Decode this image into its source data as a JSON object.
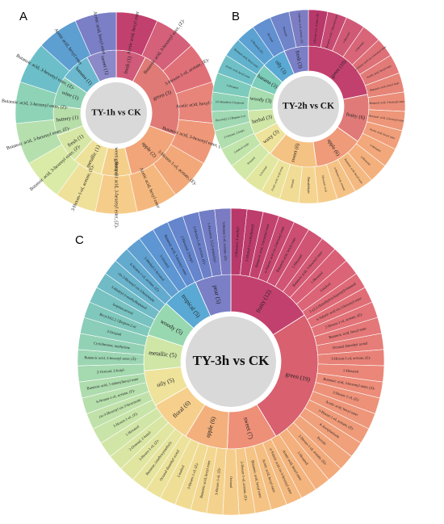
{
  "panels": [
    {
      "id": "A",
      "center_label": "TY-1h vs CK",
      "inner": [
        {
          "label": "fresh (1)",
          "color": "#cf5a7a",
          "weight": 1
        },
        {
          "label": "green (3)",
          "color": "#e07a76",
          "weight": 3
        },
        {
          "label": "apple (2)",
          "color": "#f1a579",
          "weight": 2
        },
        {
          "label": "sweet/grassy (1)",
          "color": "#f4cf8a",
          "weight": 1
        },
        {
          "label": "metallic (1)",
          "color": "#eee29b",
          "weight": 1
        },
        {
          "label": "fresh (1)",
          "color": "#d6e6a4",
          "weight": 1
        },
        {
          "label": "buttery (1)",
          "color": "#b7dea9",
          "weight": 1
        },
        {
          "label": "wine (1)",
          "color": "#8fd1b4",
          "weight": 1
        },
        {
          "label": "banana (1)",
          "color": "#6cb9cf",
          "weight": 1
        },
        {
          "label": "sweet (1)",
          "color": "#8c89c9",
          "weight": 1
        }
      ],
      "outer": [
        {
          "label": "Acetic acid, hexyl ester",
          "color": "#c2406e"
        },
        {
          "label": "Butanoic acid, 3-hexenyl ester, (Z)-",
          "color": "#d4607a"
        },
        {
          "label": "3-Hexen-1-ol, acetate, (E)-",
          "color": "#e07078"
        },
        {
          "label": "Acetic acid, hexyl ester",
          "color": "#e8857a"
        },
        {
          "label": "Butanoic acid, 3-hexenyl ester, (Z)-",
          "color": "#ee9879"
        },
        {
          "label": "3-Hexen-1-ol, acetate, (E)-",
          "color": "#f2a879"
        },
        {
          "label": "Acetic acid, hexyl ester",
          "color": "#f4b87e"
        },
        {
          "label": "Butanoic acid, 3-hexenyl ester, (Z)-",
          "color": "#f6cc8a"
        },
        {
          "label": "3-Hexen-1-ol, acetate, (E)-",
          "color": "#efe09a"
        },
        {
          "label": "Butanoic acid, 3-hexenyl ester, (Z)-",
          "color": "#d9eba6"
        },
        {
          "label": "Butanoic acid, 3-hexenyl ester, (Z)-",
          "color": "#b5e0ae"
        },
        {
          "label": "Butanoic acid, 3-hexenyl ester, (Z)-",
          "color": "#8fd3b6"
        },
        {
          "label": "Butanoic acid, 3-hexenyl ester, (Z)-",
          "color": "#6cbfc8"
        },
        {
          "label": "Acetic acid, hexyl ester",
          "color": "#5e9fd2"
        },
        {
          "label": "Acetic acid, hexyl ester",
          "color": "#7a7fc6"
        }
      ]
    },
    {
      "id": "B",
      "center_label": "TY-2h vs CK",
      "inner": [
        {
          "label": "green (10)",
          "color": "#c2406e",
          "weight": 10
        },
        {
          "label": "fruity (6)",
          "color": "#e07a78",
          "weight": 6
        },
        {
          "label": "apple (6)",
          "color": "#ef9a79",
          "weight": 6
        },
        {
          "label": "sweet (6)",
          "color": "#f4c283",
          "weight": 6
        },
        {
          "label": "waxy (3)",
          "color": "#eee39b",
          "weight": 3
        },
        {
          "label": "herbal (3)",
          "color": "#cfe6a6",
          "weight": 3
        },
        {
          "label": "woody (3)",
          "color": "#a6dcae",
          "weight": 3
        },
        {
          "label": "banana (3)",
          "color": "#7ccdb9",
          "weight": 3
        },
        {
          "label": "oily (3)",
          "color": "#5aa9d4",
          "weight": 3
        },
        {
          "label": "fresh (3)",
          "color": "#7a7fc6",
          "weight": 3
        }
      ],
      "outer": [
        {
          "label": "3-Hexen-1-ol, acetate, (E)-",
          "color": "#b8386a"
        },
        {
          "label": "Butanoic acid, 3-hexenyl ester",
          "color": "#c64a72"
        },
        {
          "label": "1-Hexanol",
          "color": "#d05a76"
        },
        {
          "label": "2-Hexenal",
          "color": "#d86678"
        },
        {
          "label": "n-Valeric acid cis-3-hexenyl ester",
          "color": "#de7078"
        },
        {
          "label": "Acetic acid, hexyl ester",
          "color": "#e27a78"
        },
        {
          "label": "Butanoic acid, hexyl ester",
          "color": "#e68478"
        },
        {
          "label": "Butanoic acid, 3-hexenyl ester",
          "color": "#ea8d79"
        },
        {
          "label": "Hexanoic acid, 3-hexenyl ester",
          "color": "#ed9679"
        },
        {
          "label": "Acetic acid, hexyl ester",
          "color": "#f09f7a"
        },
        {
          "label": "1-Hexanol",
          "color": "#f2a87b"
        },
        {
          "label": "2-Hexenal",
          "color": "#f3b07d"
        },
        {
          "label": "Butanoic acid, hexyl ester",
          "color": "#f4b980"
        },
        {
          "label": "3-Hexen-1-ol, acetate",
          "color": "#f5c285"
        },
        {
          "label": "Hexanoic acid",
          "color": "#f6cb8a"
        },
        {
          "label": "Benzaldehyde",
          "color": "#f4d48f"
        },
        {
          "label": "Octanal",
          "color": "#f0dc95"
        },
        {
          "label": "Acetic acid, octyl ester",
          "color": "#ece39b"
        },
        {
          "label": "2-Octenal",
          "color": "#e2e7a0"
        },
        {
          "label": "Nonanal",
          "color": "#d2e8a6"
        },
        {
          "label": "Linalool oxide",
          "color": "#c1e4aa"
        },
        {
          "label": "2-Octenal, 2-butyl-",
          "color": "#b0deae"
        },
        {
          "label": "Bicyclo[2.2.1]heptan-2-ol",
          "color": "#9fd8b2"
        },
        {
          "label": "2,6-Dimethyl-5-heptenal",
          "color": "#8ed2b6"
        },
        {
          "label": "1-Hexanol",
          "color": "#7dcbbc"
        },
        {
          "label": "Acetic acid, hexyl ester",
          "color": "#6ec0c6"
        },
        {
          "label": "Butanoic acid, hexyl ester",
          "color": "#62b2cd"
        },
        {
          "label": "2-Hexenal, (E)-",
          "color": "#5ba2d2"
        },
        {
          "label": "Hexanal",
          "color": "#6290d0"
        },
        {
          "label": "Nonanal",
          "color": "#6f84c9"
        },
        {
          "label": "3-Hexen-1-ol, acetate, (Z)-",
          "color": "#7c7dc3"
        }
      ]
    },
    {
      "id": "C",
      "center_label": "TY-3h vs CK",
      "inner": [
        {
          "label": "fruity (12)",
          "color": "#c2406e",
          "weight": 12
        },
        {
          "label": "green (19)",
          "color": "#d8606f",
          "weight": 19
        },
        {
          "label": "sweet (7)",
          "color": "#ee8f78",
          "weight": 7
        },
        {
          "label": "apple (6)",
          "color": "#f3b07c",
          "weight": 6
        },
        {
          "label": "floral (6)",
          "color": "#f6cf8c",
          "weight": 6
        },
        {
          "label": "oily (5)",
          "color": "#efe39b",
          "weight": 5
        },
        {
          "label": "metallic (5)",
          "color": "#cfe6a6",
          "weight": 5
        },
        {
          "label": "woody (5)",
          "color": "#98d8b0",
          "weight": 5
        },
        {
          "label": "tropical (5)",
          "color": "#5aa9d4",
          "weight": 5
        },
        {
          "label": "pear (5)",
          "color": "#7a7fc6",
          "weight": 5
        }
      ],
      "outer": [
        {
          "label": "2-Butanol, 3-methyl-",
          "color": "#b8386a"
        },
        {
          "label": "3-Methyl-1-methylpentyl",
          "color": "#bd3d6c"
        },
        {
          "label": "Butanoic acid, 3-hexenyl ester",
          "color": "#c2426e"
        },
        {
          "label": "n-Valeric acid cis-3-hexenyl ester",
          "color": "#c74870"
        },
        {
          "label": "Butanoic acid, hexyl ester",
          "color": "#cc4e72"
        },
        {
          "label": "1-Hexanol",
          "color": "#d05474"
        },
        {
          "label": "Butanoic acid, 3-hexenyl ester",
          "color": "#d45a75"
        },
        {
          "label": "1-Hexanol",
          "color": "#d85f76"
        },
        {
          "label": "Linalool",
          "color": "#db6477"
        },
        {
          "label": "2-(2,3-dimethylcyclopentyl)-butanal",
          "color": "#de6977"
        },
        {
          "label": "n-Valeric acid cis-3-hexenyl ester",
          "color": "#e06e77"
        },
        {
          "label": "2-Hexen-1-ol, acetate, (E)-",
          "color": "#e27378"
        },
        {
          "label": "Butanoic acid, hexyl ester",
          "color": "#e47878"
        },
        {
          "label": "Octanal dimethyl acetal",
          "color": "#e67d78"
        },
        {
          "label": "3-Hexen-1-ol, acetate, (E)-",
          "color": "#e88278"
        },
        {
          "label": "1-Hexanol",
          "color": "#ea8779"
        },
        {
          "label": "Butanoic acid, 3-hexenyl ester, (Z)-",
          "color": "#ec8c79"
        },
        {
          "label": "3-Hexen-1-ol, (Z)-",
          "color": "#ed9179"
        },
        {
          "label": "Acetic acid, hexyl ester",
          "color": "#ee967a"
        },
        {
          "label": "3-Hexen-1-ol, acetate, (Z)-",
          "color": "#ef9b7a"
        },
        {
          "label": "4-Acetylanisole",
          "color": "#f0a07a"
        },
        {
          "label": "Pyrrole",
          "color": "#f1a57b"
        },
        {
          "label": "2-Hexen-1-ol, acetate, (E)-",
          "color": "#f2aa7b"
        },
        {
          "label": "1-Hexanol",
          "color": "#f3af7c"
        },
        {
          "label": "Acetic acid, hexyl ester",
          "color": "#f3b47d"
        },
        {
          "label": "n-Valeric acid cis-3-hexenyl ester",
          "color": "#f4b97f"
        },
        {
          "label": "Acetic acid, hexyl ester",
          "color": "#f4be81"
        },
        {
          "label": "Butanoic acid, hexyl ester",
          "color": "#f5c384"
        },
        {
          "label": "2-Hexen-1-ol, acetate, (E)-",
          "color": "#f5c887"
        },
        {
          "label": "Octanal",
          "color": "#f5cd8a"
        },
        {
          "label": "3-Hexen-1-ol, (Z)-",
          "color": "#f4d28d"
        },
        {
          "label": "Butanoic acid, hexyl ester",
          "color": "#f3d790"
        },
        {
          "label": "3-Hexen-1-ol, (Z)-",
          "color": "#f1db93"
        },
        {
          "label": "Linalool",
          "color": "#efdf96"
        },
        {
          "label": "Octanal dimethyl acetal",
          "color": "#ece29a"
        },
        {
          "label": "Benzene, (methoxymethyl)-",
          "color": "#e6e49d"
        },
        {
          "label": "3-Hexen-1-ol, (Z)-",
          "color": "#e0e5a0"
        },
        {
          "label": "2-Octenal, 2-butyl-",
          "color": "#d9e6a3"
        },
        {
          "label": "1-Hexanol",
          "color": "#d1e6a6"
        },
        {
          "label": "3-Hexen-1-ol, (Z)-",
          "color": "#c9e4a8"
        },
        {
          "label": "cis-3-Hexenyl cis-3-hexenoate",
          "color": "#c0e2aa"
        },
        {
          "label": "6-Nonen-1-ol, acetate, (Z)-",
          "color": "#b7dfac"
        },
        {
          "label": "Butanoic acid, 1-ethenylhexyl ester",
          "color": "#aedcae"
        },
        {
          "label": "2-Octenal, 2-butyl-",
          "color": "#a5d9b0"
        },
        {
          "label": "Butanoic acid, 3-hexenyl ester, (Z)-",
          "color": "#9cd5b2"
        },
        {
          "label": "Cyclohexene, methylene",
          "color": "#93d1b5"
        },
        {
          "label": "3-Octanol",
          "color": "#8acdb8"
        },
        {
          "label": "Bicyclo[2.2.1]heptan-2-ol",
          "color": "#81c8bc"
        },
        {
          "label": "Isopinocarveol",
          "color": "#78c2c1"
        },
        {
          "label": "5-Methyl-5-methylheptanol",
          "color": "#70bbc6"
        },
        {
          "label": "cis-3-Hexenyl cis-3-hexenoate",
          "color": "#69b3cb"
        },
        {
          "label": "6-Nonen-1-ol, acetate, (Z)-",
          "color": "#63aacf"
        },
        {
          "label": "5-Methyl-1-hexanol",
          "color": "#5fa0d1"
        },
        {
          "label": "3-Octanol",
          "color": "#5d96d2"
        },
        {
          "label": "Butanoic acid, 3-hexenyl ester",
          "color": "#608cd0"
        },
        {
          "label": "2-Hexenal, 2-butyl-",
          "color": "#6585cc"
        },
        {
          "label": "3-Hexen-1-ol, acetate, (E)-",
          "color": "#6b80c8"
        },
        {
          "label": "1-Hexanol, 3,5,5-trimethyl-",
          "color": "#727dc5"
        },
        {
          "label": "3-Hexen-1-ol, acetate, (Z)-",
          "color": "#7a7bc2"
        }
      ]
    }
  ]
}
